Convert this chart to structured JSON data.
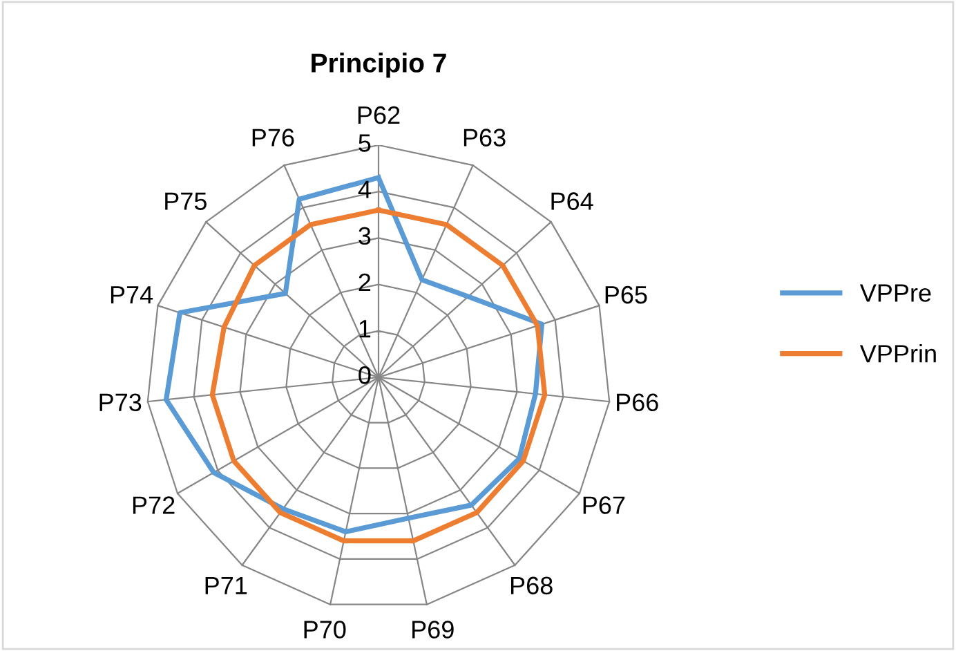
{
  "chart_data": {
    "type": "radar",
    "title": "Principio 7",
    "categories": [
      "P62",
      "P63",
      "P64",
      "P65",
      "P66",
      "P67",
      "P68",
      "P69",
      "P70",
      "P71",
      "P72",
      "P73",
      "P74",
      "P75",
      "P76"
    ],
    "series": [
      {
        "name": "VPPre",
        "color": "#5b9bd5",
        "values": [
          4.3,
          2.3,
          2.6,
          3.7,
          3.4,
          3.5,
          3.4,
          3.1,
          3.4,
          3.5,
          4.1,
          4.6,
          4.5,
          2.7,
          4.2
        ]
      },
      {
        "name": "VPPrin",
        "color": "#ed7d31",
        "values": [
          3.6,
          3.6,
          3.6,
          3.6,
          3.6,
          3.6,
          3.6,
          3.6,
          3.6,
          3.6,
          3.6,
          3.6,
          3.5,
          3.6,
          3.6
        ]
      }
    ],
    "ylim": [
      0,
      5
    ],
    "yticks": [
      0,
      1,
      2,
      3,
      4,
      5
    ],
    "grid": true,
    "legend": "right",
    "marker": "none",
    "line_style": "solid"
  }
}
